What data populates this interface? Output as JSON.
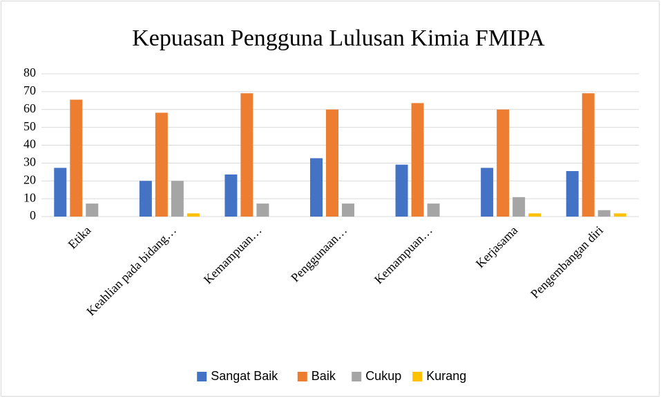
{
  "chart_data": {
    "type": "bar",
    "title": "Kepuasan Pengguna Lulusan Kimia FMIPA",
    "categories": [
      "Etika",
      "Keahlian pada bidang…",
      "Kemampuan…",
      "Penggunaan…",
      "Kemampuan…",
      "Kerjasama",
      "Pengembangan diri"
    ],
    "series": [
      {
        "name": "Sangat Baik",
        "color": "#4472c4",
        "values": [
          27.3,
          20,
          23.6,
          32.7,
          29.1,
          27.3,
          25.5
        ]
      },
      {
        "name": "Baik",
        "color": "#ed7d31",
        "values": [
          65.5,
          58.2,
          69.1,
          60,
          63.6,
          60,
          69.1
        ]
      },
      {
        "name": "Cukup",
        "color": "#a5a5a5",
        "values": [
          7.3,
          20,
          7.3,
          7.3,
          7.3,
          10.9,
          3.6
        ]
      },
      {
        "name": "Kurang",
        "color": "#ffc000",
        "values": [
          0,
          1.8,
          0,
          0,
          0,
          1.8,
          1.8
        ]
      }
    ],
    "ylim": [
      0,
      80
    ],
    "yticks": [
      0,
      10,
      20,
      30,
      40,
      50,
      60,
      70,
      80
    ],
    "grid": true,
    "legend": "bottom"
  }
}
